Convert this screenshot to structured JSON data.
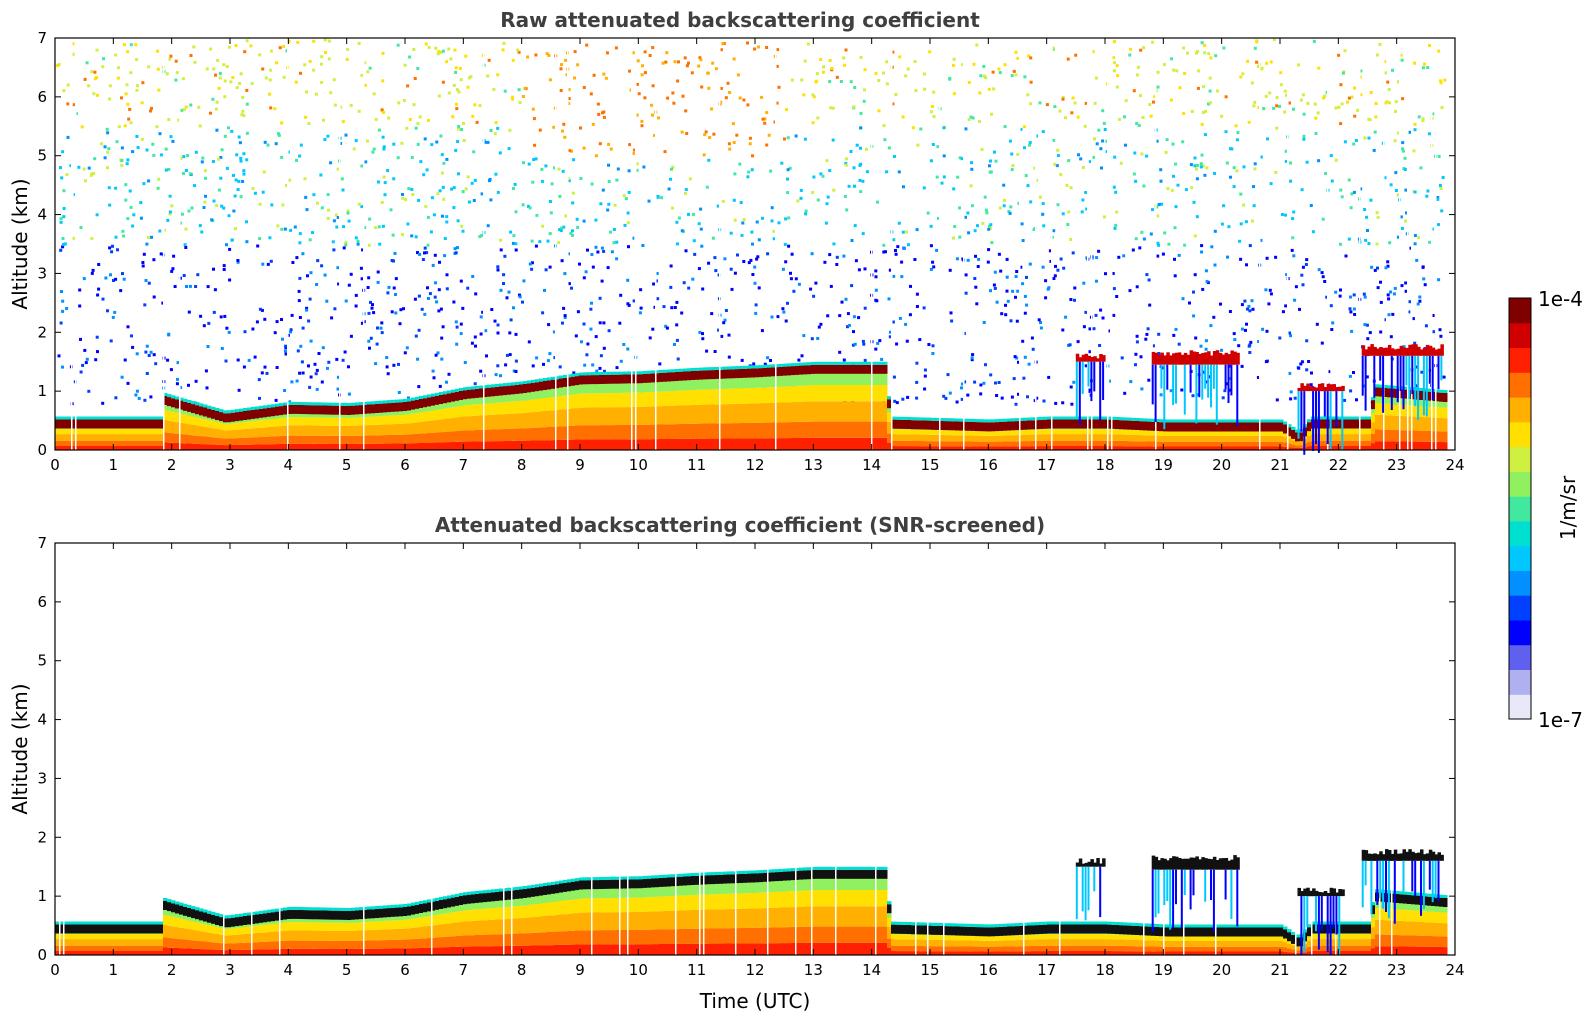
{
  "chart_data": [
    {
      "type": "heatmap",
      "title": "Raw attenuated backscattering coefficient",
      "xlabel": "",
      "ylabel": "Altitude (km)",
      "xlim": [
        0,
        24
      ],
      "ylim": [
        0,
        7
      ],
      "x_ticks": [
        "0",
        "1",
        "2",
        "3",
        "4",
        "5",
        "6",
        "7",
        "8",
        "9",
        "10",
        "11",
        "12",
        "13",
        "14",
        "15",
        "16",
        "17",
        "18",
        "19",
        "20",
        "21",
        "22",
        "23",
        "24"
      ],
      "y_ticks": [
        "0",
        "1",
        "2",
        "3",
        "4",
        "5",
        "6",
        "7"
      ],
      "screened": false,
      "layer_top_km": [
        [
          0,
          0.45
        ],
        [
          1.8,
          0.45
        ],
        [
          1.85,
          0.85
        ],
        [
          2.9,
          0.55
        ],
        [
          4,
          0.7
        ],
        [
          5,
          0.68
        ],
        [
          6,
          0.75
        ],
        [
          7,
          0.95
        ],
        [
          8,
          1.05
        ],
        [
          9,
          1.2
        ],
        [
          10,
          1.22
        ],
        [
          11,
          1.28
        ],
        [
          12,
          1.32
        ],
        [
          13,
          1.38
        ],
        [
          14.2,
          1.38
        ],
        [
          14.3,
          0.45
        ],
        [
          16,
          0.4
        ],
        [
          17,
          0.45
        ],
        [
          18,
          0.45
        ],
        [
          19,
          0.4
        ],
        [
          21,
          0.4
        ],
        [
          21.3,
          0.2
        ],
        [
          21.5,
          0.45
        ],
        [
          22.5,
          0.45
        ],
        [
          22.6,
          1.0
        ],
        [
          23.8,
          0.9
        ]
      ],
      "cloud_bands_km": [
        [
          17.5,
          18.0,
          1.5,
          1.65
        ],
        [
          18.8,
          20.3,
          1.45,
          1.7
        ],
        [
          21.3,
          22.1,
          1.0,
          1.15
        ],
        [
          22.4,
          23.8,
          1.6,
          1.8
        ]
      ]
    },
    {
      "type": "heatmap",
      "title": "Attenuated backscattering coefficient (SNR-screened)",
      "xlabel": "Time (UTC)",
      "ylabel": "Altitude (km)",
      "xlim": [
        0,
        24
      ],
      "ylim": [
        0,
        7
      ],
      "x_ticks": [
        "0",
        "1",
        "2",
        "3",
        "4",
        "5",
        "6",
        "7",
        "8",
        "9",
        "10",
        "11",
        "12",
        "13",
        "14",
        "15",
        "16",
        "17",
        "18",
        "19",
        "20",
        "21",
        "22",
        "23",
        "24"
      ],
      "y_ticks": [
        "0",
        "1",
        "2",
        "3",
        "4",
        "5",
        "6",
        "7"
      ],
      "screened": true,
      "layer_top_km": [
        [
          0,
          0.45
        ],
        [
          1.8,
          0.45
        ],
        [
          1.85,
          0.85
        ],
        [
          2.9,
          0.55
        ],
        [
          4,
          0.7
        ],
        [
          5,
          0.68
        ],
        [
          6,
          0.75
        ],
        [
          7,
          0.95
        ],
        [
          8,
          1.05
        ],
        [
          9,
          1.2
        ],
        [
          10,
          1.22
        ],
        [
          11,
          1.28
        ],
        [
          12,
          1.32
        ],
        [
          13,
          1.38
        ],
        [
          14.2,
          1.38
        ],
        [
          14.3,
          0.45
        ],
        [
          16,
          0.4
        ],
        [
          17,
          0.45
        ],
        [
          18,
          0.45
        ],
        [
          19,
          0.4
        ],
        [
          21,
          0.4
        ],
        [
          21.3,
          0.2
        ],
        [
          21.5,
          0.45
        ],
        [
          22.5,
          0.45
        ],
        [
          22.6,
          1.0
        ],
        [
          23.8,
          0.9
        ]
      ],
      "cloud_bands_km": [
        [
          17.5,
          18.0,
          1.5,
          1.65
        ],
        [
          18.8,
          20.3,
          1.45,
          1.7
        ],
        [
          21.3,
          22.1,
          1.0,
          1.15
        ],
        [
          22.4,
          23.8,
          1.6,
          1.8
        ]
      ]
    }
  ],
  "colorbar": {
    "label": "1/m/sr",
    "max_label": "1e-4",
    "min_label": "1e-7",
    "colors": [
      "#e8e8f8",
      "#b0b0f0",
      "#6060f0",
      "#0000ff",
      "#0040ff",
      "#0090ff",
      "#00c8ff",
      "#00e0d0",
      "#40e8a0",
      "#90f060",
      "#d0f040",
      "#ffe000",
      "#ffb000",
      "#ff7000",
      "#ff2000",
      "#d00000",
      "#800000"
    ]
  }
}
